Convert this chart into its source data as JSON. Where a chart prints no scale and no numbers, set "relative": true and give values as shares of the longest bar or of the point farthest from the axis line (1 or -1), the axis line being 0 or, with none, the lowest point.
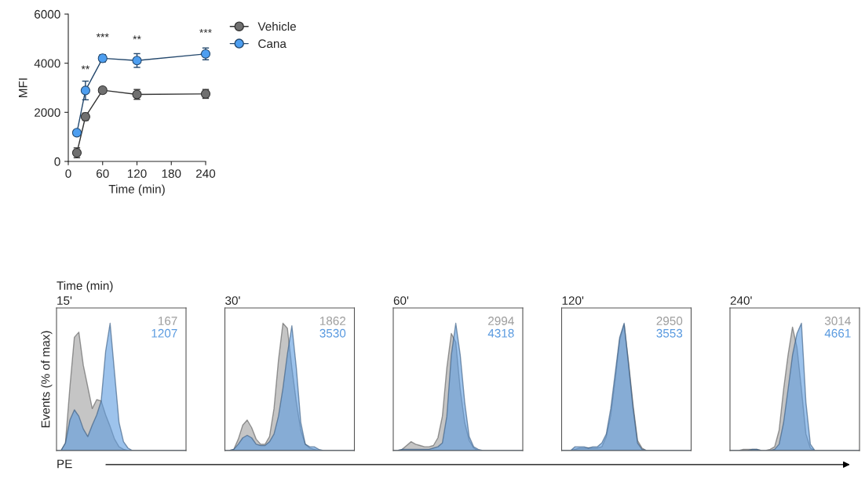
{
  "chart_data": [
    {
      "type": "line",
      "xlabel": "Time (min)",
      "ylabel": "MFI",
      "x": [
        15,
        30,
        60,
        120,
        240
      ],
      "xlim": [
        0,
        240
      ],
      "xticks": [
        0,
        60,
        120,
        180,
        240
      ],
      "ylim": [
        0,
        6000
      ],
      "yticks": [
        0,
        2000,
        4000,
        6000
      ],
      "marker": "circle",
      "legend": "right",
      "grid": false,
      "series": [
        {
          "name": "Vehicle",
          "color": "#707070",
          "values": [
            350,
            1820,
            2900,
            2730,
            2750
          ],
          "errors": [
            200,
            150,
            60,
            200,
            180
          ]
        },
        {
          "name": "Cana",
          "color": "#4d9ef0",
          "values": [
            1170,
            2890,
            4200,
            4110,
            4380
          ],
          "errors": [
            null,
            380,
            150,
            280,
            240
          ]
        }
      ],
      "annotations": [
        {
          "text": "**",
          "x": 30,
          "y": 2890
        },
        {
          "text": "***",
          "x": 60,
          "y": 4200
        },
        {
          "text": "**",
          "x": 120,
          "y": 4110
        },
        {
          "text": "***",
          "x": 240,
          "y": 4380
        }
      ]
    },
    {
      "type": "area",
      "relative": true,
      "title": "15'",
      "ylabel": "Events (% of max)",
      "xlabel": "PE",
      "annotations": [
        "Time (min)"
      ],
      "legend": "top right",
      "categories": [
        null,
        null,
        null,
        null,
        null,
        null,
        null,
        null,
        null,
        null,
        null,
        null,
        null,
        null,
        null,
        null,
        null,
        null,
        null,
        null,
        null,
        null,
        null,
        null,
        null,
        null,
        null,
        null,
        null,
        null
      ],
      "series": [
        {
          "name": "167",
          "color": "#9e9e9e",
          "values": [
            0,
            0,
            0.06,
            0.5,
            0.89,
            0.93,
            0.67,
            0.5,
            0.33,
            0.4,
            0.39,
            0.28,
            0.19,
            0.09,
            0.03,
            0.01,
            0,
            0,
            0,
            0,
            0,
            0,
            0,
            0,
            0,
            0,
            0,
            0,
            0,
            0
          ]
        },
        {
          "name": "1207",
          "color": "#5b9be0",
          "values": [
            0,
            0,
            0.06,
            0.24,
            0.32,
            0.27,
            0.17,
            0.11,
            0.2,
            0.28,
            0.39,
            0.78,
            1,
            0.61,
            0.22,
            0.07,
            0.02,
            0,
            0,
            0,
            0,
            0,
            0,
            0,
            0,
            0,
            0,
            0,
            0,
            0
          ]
        }
      ]
    },
    {
      "type": "area",
      "relative": true,
      "title": "30'",
      "legend": "top right",
      "categories": [
        null,
        null,
        null,
        null,
        null,
        null,
        null,
        null,
        null,
        null,
        null,
        null,
        null,
        null,
        null,
        null,
        null,
        null,
        null,
        null,
        null,
        null,
        null,
        null,
        null,
        null,
        null,
        null,
        null,
        null
      ],
      "series": [
        {
          "name": "1862",
          "color": "#9e9e9e",
          "values": [
            0,
            0,
            0.01,
            0.09,
            0.2,
            0.24,
            0.18,
            0.09,
            0.05,
            0.05,
            0.11,
            0.33,
            0.71,
            1,
            0.96,
            0.65,
            0.38,
            0.16,
            0.05,
            0.02,
            0.01,
            0,
            0,
            0,
            0,
            0,
            0,
            0,
            0,
            0
          ]
        },
        {
          "name": "3530",
          "color": "#5b9be0",
          "values": [
            0,
            0,
            0.01,
            0.05,
            0.1,
            0.12,
            0.1,
            0.05,
            0.04,
            0.04,
            0.07,
            0.13,
            0.27,
            0.49,
            0.76,
            0.98,
            0.65,
            0.22,
            0.05,
            0.03,
            0.03,
            0.01,
            0,
            0,
            0,
            0,
            0,
            0,
            0,
            0
          ]
        }
      ]
    },
    {
      "type": "area",
      "relative": true,
      "title": "60'",
      "legend": "top right",
      "categories": [
        null,
        null,
        null,
        null,
        null,
        null,
        null,
        null,
        null,
        null,
        null,
        null,
        null,
        null,
        null,
        null,
        null,
        null,
        null,
        null,
        null,
        null,
        null,
        null,
        null,
        null,
        null,
        null,
        null,
        null
      ],
      "series": [
        {
          "name": "2994",
          "color": "#9e9e9e",
          "values": [
            0,
            0,
            0.01,
            0.04,
            0.07,
            0.05,
            0.04,
            0.03,
            0.03,
            0.04,
            0.1,
            0.27,
            0.65,
            0.92,
            0.85,
            0.48,
            0.22,
            0.08,
            0.02,
            0,
            0,
            0,
            0,
            0,
            0,
            0,
            0,
            0,
            0,
            0
          ]
        },
        {
          "name": "4318",
          "color": "#5b9be0",
          "values": [
            0,
            0,
            0.01,
            0.01,
            0.01,
            0.01,
            0.01,
            0.01,
            0.01,
            0.02,
            0.03,
            0.06,
            0.27,
            0.75,
            1,
            0.75,
            0.38,
            0.11,
            0.03,
            0.01,
            0,
            0,
            0,
            0,
            0,
            0,
            0,
            0,
            0,
            0
          ]
        }
      ]
    },
    {
      "type": "area",
      "relative": true,
      "title": "120'",
      "legend": "top right",
      "categories": [
        null,
        null,
        null,
        null,
        null,
        null,
        null,
        null,
        null,
        null,
        null,
        null,
        null,
        null,
        null,
        null,
        null,
        null,
        null,
        null,
        null,
        null,
        null,
        null,
        null,
        null,
        null,
        null,
        null,
        null
      ],
      "series": [
        {
          "name": "2950",
          "color": "#9e9e9e",
          "values": [
            0,
            0,
            0,
            0.01,
            0.02,
            0.02,
            0.02,
            0.02,
            0.02,
            0.03,
            0.11,
            0.28,
            0.56,
            0.87,
            0.99,
            0.69,
            0.36,
            0.08,
            0.02,
            0,
            0,
            0,
            0,
            0,
            0,
            0,
            0,
            0,
            0,
            0
          ]
        },
        {
          "name": "3553",
          "color": "#5b9be0",
          "values": [
            0,
            0,
            0,
            0.03,
            0.03,
            0.03,
            0.02,
            0.03,
            0.03,
            0.06,
            0.13,
            0.33,
            0.61,
            0.89,
            1,
            0.67,
            0.33,
            0.06,
            0.01,
            0,
            0,
            0,
            0,
            0,
            0,
            0,
            0,
            0,
            0,
            0
          ]
        }
      ]
    },
    {
      "type": "area",
      "relative": true,
      "title": "240'",
      "legend": "top right",
      "categories": [
        null,
        null,
        null,
        null,
        null,
        null,
        null,
        null,
        null,
        null,
        null,
        null,
        null,
        null,
        null,
        null,
        null,
        null,
        null,
        null,
        null,
        null,
        null,
        null,
        null,
        null,
        null,
        null,
        null,
        null
      ],
      "series": [
        {
          "name": "3014",
          "color": "#9e9e9e",
          "values": [
            0,
            0,
            0,
            0.01,
            0.01,
            0.01,
            0.01,
            0,
            0,
            0.01,
            0.03,
            0.16,
            0.48,
            0.75,
            0.97,
            0.81,
            0.48,
            0.13,
            0.02,
            0,
            0,
            0,
            0,
            0,
            0,
            0,
            0,
            0,
            0,
            0
          ]
        },
        {
          "name": "4661",
          "color": "#5b9be0",
          "values": [
            0,
            0,
            0,
            0,
            0,
            0.01,
            0.01,
            0,
            0,
            0,
            0.01,
            0.05,
            0.22,
            0.48,
            0.75,
            0.92,
            1,
            0.38,
            0.05,
            0,
            0,
            0,
            0,
            0,
            0,
            0,
            0,
            0,
            0,
            0
          ]
        }
      ]
    }
  ]
}
